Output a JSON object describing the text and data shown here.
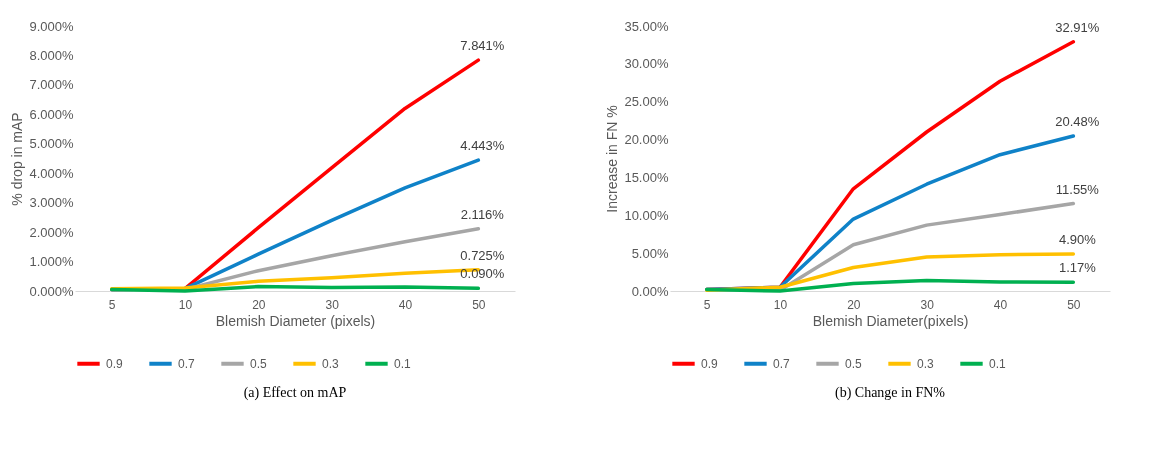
{
  "chart_data": [
    {
      "type": "line",
      "title": "(a) Effect on mAP",
      "xlabel": "Blemish Diameter (pixels)",
      "ylabel": "% drop in mAP",
      "categories": [
        "5",
        "10",
        "20",
        "30",
        "40",
        "50"
      ],
      "ylim": [
        0,
        9
      ],
      "yticks": [
        {
          "value": 0,
          "label": "0.000%"
        },
        {
          "value": 1,
          "label": "1.000%"
        },
        {
          "value": 2,
          "label": "2.000%"
        },
        {
          "value": 3,
          "label": "3.000%"
        },
        {
          "value": 4,
          "label": "4.000%"
        },
        {
          "value": 5,
          "label": "5.000%"
        },
        {
          "value": 6,
          "label": "6.000%"
        },
        {
          "value": 7,
          "label": "7.000%"
        },
        {
          "value": 8,
          "label": "8.000%"
        },
        {
          "value": 9,
          "label": "9.000%"
        }
      ],
      "legend": "bottom",
      "series": [
        {
          "name": "0.9",
          "color": "#ff0000",
          "values": [
            0.05,
            0.08,
            2.15,
            4.18,
            6.2,
            7.841
          ],
          "value_labels": [
            null,
            null,
            null,
            null,
            null,
            "7.841%"
          ]
        },
        {
          "name": "0.7",
          "color": "#0f82c8",
          "values": [
            0.05,
            0.08,
            1.25,
            2.4,
            3.5,
            4.443
          ],
          "value_labels": [
            null,
            null,
            null,
            null,
            null,
            "4.443%"
          ]
        },
        {
          "name": "0.5",
          "color": "#a6a6a6",
          "values": [
            0.05,
            0.05,
            0.69,
            1.2,
            1.67,
            2.116
          ],
          "value_labels": [
            null,
            null,
            null,
            null,
            null,
            "2.116%"
          ]
        },
        {
          "name": "0.3",
          "color": "#ffc000",
          "values": [
            0.08,
            0.1,
            0.33,
            0.45,
            0.6,
            0.725
          ],
          "value_labels": [
            null,
            null,
            null,
            null,
            null,
            "0.725%"
          ]
        },
        {
          "name": "0.1",
          "color": "#00b050",
          "values": [
            0.05,
            0.0,
            0.15,
            0.12,
            0.14,
            0.09
          ],
          "value_labels": [
            null,
            null,
            null,
            null,
            null,
            "0.090%"
          ]
        }
      ]
    },
    {
      "type": "line",
      "title": "(b) Change in FN%",
      "xlabel": "Blemish Diameter(pixels)",
      "ylabel": "Increase in FN %",
      "categories": [
        "5",
        "10",
        "20",
        "30",
        "40",
        "50"
      ],
      "ylim": [
        0,
        35
      ],
      "yticks": [
        {
          "value": 0,
          "label": "0.00%"
        },
        {
          "value": 5,
          "label": "5.00%"
        },
        {
          "value": 10,
          "label": "10.00%"
        },
        {
          "value": 15,
          "label": "15.00%"
        },
        {
          "value": 20,
          "label": "20.00%"
        },
        {
          "value": 25,
          "label": "25.00%"
        },
        {
          "value": 30,
          "label": "30.00%"
        },
        {
          "value": 35,
          "label": "35.00%"
        }
      ],
      "legend": "bottom",
      "series": [
        {
          "name": "0.9",
          "color": "#ff0000",
          "values": [
            0.2,
            0.5,
            13.5,
            21.0,
            27.7,
            32.91
          ],
          "value_labels": [
            null,
            null,
            null,
            null,
            null,
            "32.91%"
          ]
        },
        {
          "name": "0.7",
          "color": "#0f82c8",
          "values": [
            0.2,
            0.5,
            9.5,
            14.1,
            18.0,
            20.48
          ],
          "value_labels": [
            null,
            null,
            null,
            null,
            null,
            "20.48%"
          ]
        },
        {
          "name": "0.5",
          "color": "#a6a6a6",
          "values": [
            0.2,
            0.1,
            6.1,
            8.7,
            10.1,
            11.55
          ],
          "value_labels": [
            null,
            null,
            null,
            null,
            null,
            "11.55%"
          ]
        },
        {
          "name": "0.3",
          "color": "#ffc000",
          "values": [
            0.1,
            0.5,
            3.1,
            4.5,
            4.8,
            4.9
          ],
          "value_labels": [
            null,
            null,
            null,
            null,
            null,
            "4.90%"
          ]
        },
        {
          "name": "0.1",
          "color": "#00b050",
          "values": [
            0.2,
            0.0,
            1.0,
            1.4,
            1.2,
            1.17
          ],
          "value_labels": [
            null,
            null,
            null,
            null,
            null,
            "1.17%"
          ]
        }
      ]
    }
  ]
}
